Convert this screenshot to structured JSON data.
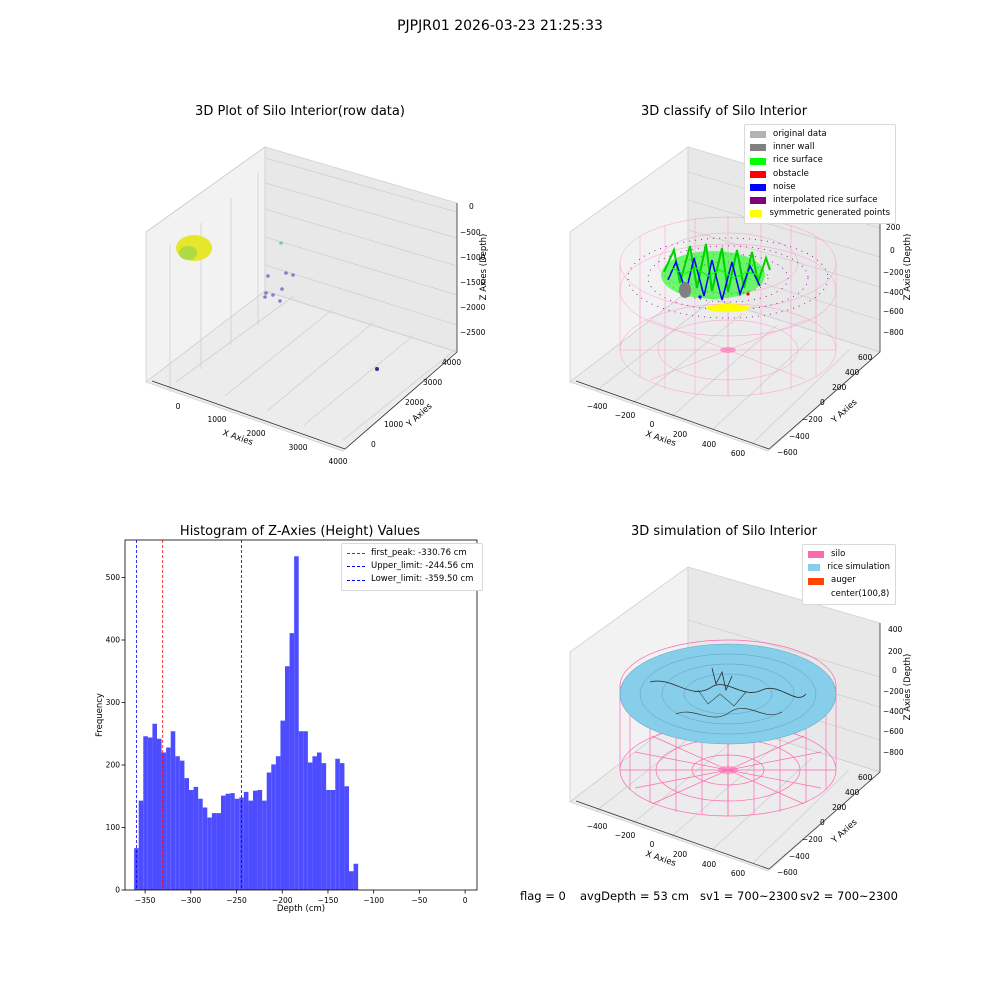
{
  "figure": {
    "suptitle": "PJPJR01 2026-03-23 21:25:33"
  },
  "panels": {
    "raw": {
      "title": "3D Plot of Silo Interior(row data)",
      "xlabel": "X Axies",
      "ylabel": "Y Axies",
      "zlabel": "Z Axies (Depth)",
      "xticks": [
        "0",
        "1000",
        "2000",
        "3000",
        "4000"
      ],
      "yticks": [
        "0",
        "1000",
        "2000",
        "3000",
        "4000"
      ],
      "zticks": [
        "0",
        "−500",
        "−1000",
        "−1500",
        "−2000",
        "−2500"
      ]
    },
    "classify": {
      "title": "3D classify of Silo Interior",
      "xlabel": "X Axies",
      "ylabel": "Y Axies",
      "zlabel": "Z Axies (Depth)",
      "xticks": [
        "−400",
        "−200",
        "0",
        "200",
        "400",
        "600"
      ],
      "yticks": [
        "−600",
        "−400",
        "−200",
        "0",
        "200",
        "400",
        "600"
      ],
      "zticks": [
        "200",
        "0",
        "−200",
        "−400",
        "−600",
        "−800"
      ],
      "legend": [
        {
          "label": "original data",
          "color": "#b3b3b3"
        },
        {
          "label": "inner wall",
          "color": "#808080"
        },
        {
          "label": "rice surface",
          "color": "#00ff00"
        },
        {
          "label": "obstacle",
          "color": "#ff0000"
        },
        {
          "label": "noise",
          "color": "#0000ff"
        },
        {
          "label": "interpolated rice surface",
          "color": "#800080"
        },
        {
          "label": "symmetric generated points",
          "color": "#ffff00"
        }
      ]
    },
    "simulation": {
      "title": "3D simulation of Silo Interior",
      "xlabel": "X Axies",
      "ylabel": "Y Axies",
      "zlabel": "Z Axies (Depth)",
      "xticks": [
        "−400",
        "−200",
        "0",
        "200",
        "400",
        "600"
      ],
      "yticks": [
        "−600",
        "−400",
        "−200",
        "0",
        "200",
        "400",
        "600"
      ],
      "zticks": [
        "400",
        "200",
        "0",
        "−200",
        "−400",
        "−600",
        "−800"
      ],
      "legend": [
        {
          "label": "silo",
          "color": "#ff69b4"
        },
        {
          "label": "rice simulation",
          "color": "#87ceeb"
        },
        {
          "label": "auger",
          "color": "#ff4500"
        },
        {
          "label": "center(100,8)",
          "color": "#ffffff"
        }
      ]
    }
  },
  "status": {
    "flag": "flag = 0",
    "avg_depth": "avgDepth = 53 cm",
    "sv1": "sv1 = 700~2300",
    "sv2": "sv2 = 700~2300"
  },
  "chart_data": [
    {
      "type": "bar",
      "title": "Histogram of Z-Axies (Height) Values",
      "xlabel": "Depth (cm)",
      "ylabel": "Frequency",
      "xlim": [
        -372,
        13
      ],
      "ylim": [
        0,
        560
      ],
      "xticks": [
        -350,
        -300,
        -250,
        -200,
        -150,
        -100,
        -50,
        0
      ],
      "yticks": [
        0,
        100,
        200,
        300,
        400,
        500
      ],
      "bar_color": "#4d4dff",
      "bin_start": -362.0,
      "bin_width": 5.0,
      "values": [
        67,
        143,
        246,
        244,
        266,
        242,
        220,
        228,
        254,
        214,
        207,
        179,
        160,
        165,
        146,
        132,
        116,
        123,
        123,
        151,
        154,
        155,
        146,
        148,
        157,
        143,
        159,
        160,
        143,
        188,
        201,
        214,
        271,
        358,
        411,
        534,
        254,
        254,
        204,
        214,
        220,
        203,
        160,
        160,
        210,
        203,
        166,
        30,
        42
      ],
      "vlines": [
        {
          "label": "first_peak: -330.76 cm",
          "x": -330.76,
          "color": "#ff0000"
        },
        {
          "label": "Upper_limit: -244.56 cm",
          "x": -244.56,
          "color": "#0000ff"
        },
        {
          "label": "Lower_limit: -359.50 cm",
          "x": -359.5,
          "color": "#0000ff"
        }
      ],
      "legend_position": "upper right"
    }
  ]
}
